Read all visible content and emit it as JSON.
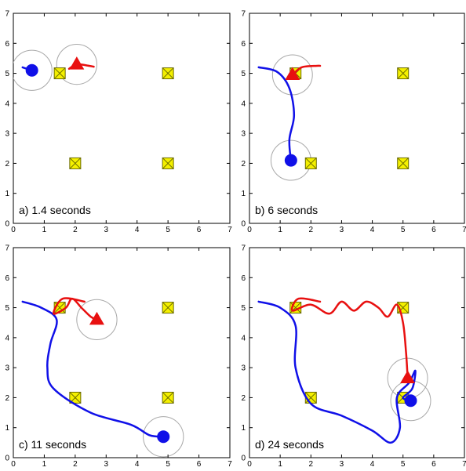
{
  "colors": {
    "blue_robot": "#1010e8",
    "red_robot": "#e81010",
    "target_fill": "#f4f000",
    "target_stroke": "#6a6a00",
    "range_circle": "#a8a8a8"
  },
  "chart_data": [
    {
      "type": "scatter",
      "caption": "a) 1.4 seconds",
      "xlim": [
        0,
        7
      ],
      "ylim": [
        0,
        7
      ],
      "xticks": [
        0,
        1,
        2,
        3,
        4,
        5,
        6,
        7
      ],
      "yticks": [
        0,
        1,
        2,
        3,
        4,
        5,
        6,
        7
      ],
      "grid": false,
      "targets": [
        [
          1.5,
          5
        ],
        [
          5,
          5
        ],
        [
          2,
          2
        ],
        [
          5,
          2
        ]
      ],
      "series": [
        {
          "marker": "circle",
          "position": [
            0.6,
            5.1
          ],
          "range": 0.65,
          "trail": [
            [
              0.3,
              5.2
            ],
            [
              0.6,
              5.1
            ]
          ]
        },
        {
          "marker": "triangle",
          "position": [
            2.05,
            5.3
          ],
          "range": 0.65,
          "trail": [
            [
              1.8,
              5.15
            ],
            [
              2.05,
              5.3
            ],
            [
              2.45,
              5.25
            ],
            [
              2.6,
              5.22
            ]
          ]
        }
      ]
    },
    {
      "type": "scatter",
      "caption": "b) 6 seconds",
      "xlim": [
        0,
        7
      ],
      "ylim": [
        0,
        7
      ],
      "xticks": [
        0,
        1,
        2,
        3,
        4,
        5,
        6,
        7
      ],
      "yticks": [
        0,
        1,
        2,
        3,
        4,
        5,
        6,
        7
      ],
      "grid": false,
      "targets": [
        [
          1.5,
          5
        ],
        [
          5,
          5
        ],
        [
          2,
          2
        ],
        [
          5,
          2
        ]
      ],
      "series": [
        {
          "marker": "circle",
          "position": [
            1.35,
            2.1
          ],
          "range": 0.65,
          "trail": [
            [
              0.3,
              5.2
            ],
            [
              0.9,
              5.05
            ],
            [
              1.3,
              4.5
            ],
            [
              1.45,
              3.6
            ],
            [
              1.3,
              2.8
            ],
            [
              1.35,
              2.1
            ]
          ]
        },
        {
          "marker": "triangle",
          "position": [
            1.4,
            4.95
          ],
          "range": 0.65,
          "trail": [
            [
              1.4,
              4.95
            ],
            [
              1.7,
              5.2
            ],
            [
              2.2,
              5.25
            ],
            [
              2.3,
              5.25
            ]
          ]
        }
      ]
    },
    {
      "type": "scatter",
      "caption": "c) 11 seconds",
      "xlim": [
        0,
        7
      ],
      "ylim": [
        0,
        7
      ],
      "xticks": [
        0,
        1,
        2,
        3,
        4,
        5,
        6,
        7
      ],
      "yticks": [
        0,
        1,
        2,
        3,
        4,
        5,
        6,
        7
      ],
      "grid": false,
      "targets": [
        [
          1.5,
          5
        ],
        [
          5,
          5
        ],
        [
          2,
          2
        ],
        [
          5,
          2
        ]
      ],
      "series": [
        {
          "marker": "circle",
          "position": [
            4.85,
            0.7
          ],
          "range": 0.65,
          "trail": [
            [
              0.3,
              5.2
            ],
            [
              0.9,
              5.0
            ],
            [
              1.4,
              4.6
            ],
            [
              1.2,
              3.8
            ],
            [
              1.1,
              3.0
            ],
            [
              1.3,
              2.3
            ],
            [
              2.5,
              1.5
            ],
            [
              3.8,
              1.1
            ],
            [
              4.4,
              0.75
            ],
            [
              4.85,
              0.7
            ]
          ]
        },
        {
          "marker": "triangle",
          "position": [
            2.7,
            4.6
          ],
          "range": 0.65,
          "trail": [
            [
              2.3,
              5.2
            ],
            [
              1.6,
              5.3
            ],
            [
              1.3,
              4.8
            ],
            [
              1.7,
              5.0
            ],
            [
              1.9,
              5.3
            ],
            [
              2.2,
              5.0
            ],
            [
              2.5,
              4.7
            ],
            [
              2.7,
              4.6
            ]
          ]
        }
      ]
    },
    {
      "type": "scatter",
      "caption": "d) 24 seconds",
      "xlim": [
        0,
        7
      ],
      "ylim": [
        0,
        7
      ],
      "xticks": [
        0,
        1,
        2,
        3,
        4,
        5,
        6,
        7
      ],
      "yticks": [
        0,
        1,
        2,
        3,
        4,
        5,
        6,
        7
      ],
      "grid": false,
      "targets": [
        [
          1.5,
          5
        ],
        [
          5,
          5
        ],
        [
          2,
          2
        ],
        [
          5,
          2
        ]
      ],
      "series": [
        {
          "marker": "circle",
          "position": [
            5.25,
            1.9
          ],
          "range": 0.65,
          "trail": [
            [
              0.3,
              5.2
            ],
            [
              1.0,
              5.0
            ],
            [
              1.5,
              4.4
            ],
            [
              1.5,
              3.0
            ],
            [
              2.0,
              1.8
            ],
            [
              3.0,
              1.4
            ],
            [
              4.0,
              0.9
            ],
            [
              4.6,
              0.5
            ],
            [
              4.9,
              1.0
            ],
            [
              4.8,
              2.0
            ],
            [
              5.2,
              2.5
            ],
            [
              5.4,
              2.9
            ],
            [
              5.3,
              2.3
            ],
            [
              5.0,
              2.0
            ],
            [
              5.25,
              1.9
            ]
          ]
        },
        {
          "marker": "triangle",
          "position": [
            5.15,
            2.65
          ],
          "range": 0.65,
          "trail": [
            [
              2.3,
              5.2
            ],
            [
              1.6,
              5.3
            ],
            [
              1.4,
              4.9
            ],
            [
              2.0,
              5.1
            ],
            [
              2.6,
              4.8
            ],
            [
              3.0,
              5.2
            ],
            [
              3.4,
              4.9
            ],
            [
              3.8,
              5.2
            ],
            [
              4.2,
              5.0
            ],
            [
              4.5,
              4.7
            ],
            [
              4.8,
              5.1
            ],
            [
              5.0,
              4.5
            ],
            [
              5.1,
              3.5
            ],
            [
              5.15,
              2.65
            ]
          ]
        }
      ]
    }
  ]
}
